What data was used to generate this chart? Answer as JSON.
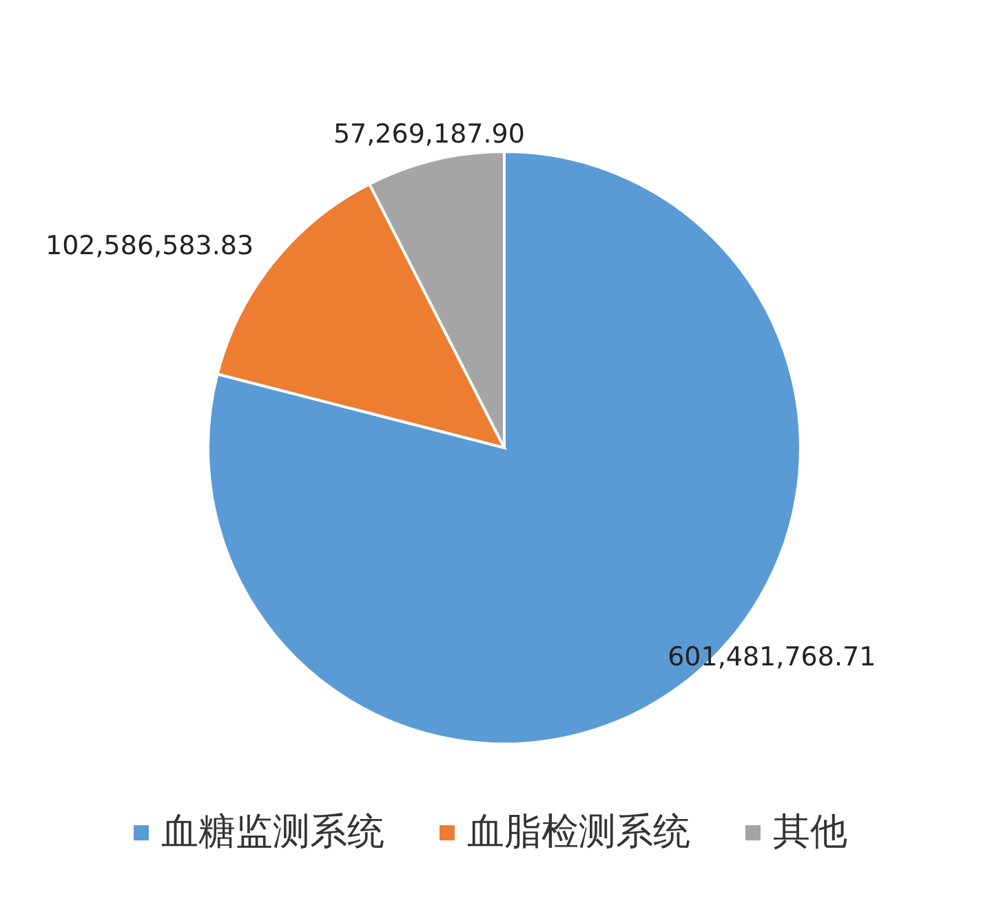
{
  "chart_data": {
    "type": "pie",
    "categories": [
      "血糖监测系统",
      "血脂检测系统",
      "其他"
    ],
    "values": [
      601481768.71,
      102586583.83,
      57269187.9
    ],
    "colors": [
      "#5b9bd5",
      "#ed7d31",
      "#a5a5a5"
    ],
    "value_labels": [
      "601,481,768.71",
      "102,586,583.83",
      "57,269,187.90"
    ],
    "legend": "bottom"
  }
}
